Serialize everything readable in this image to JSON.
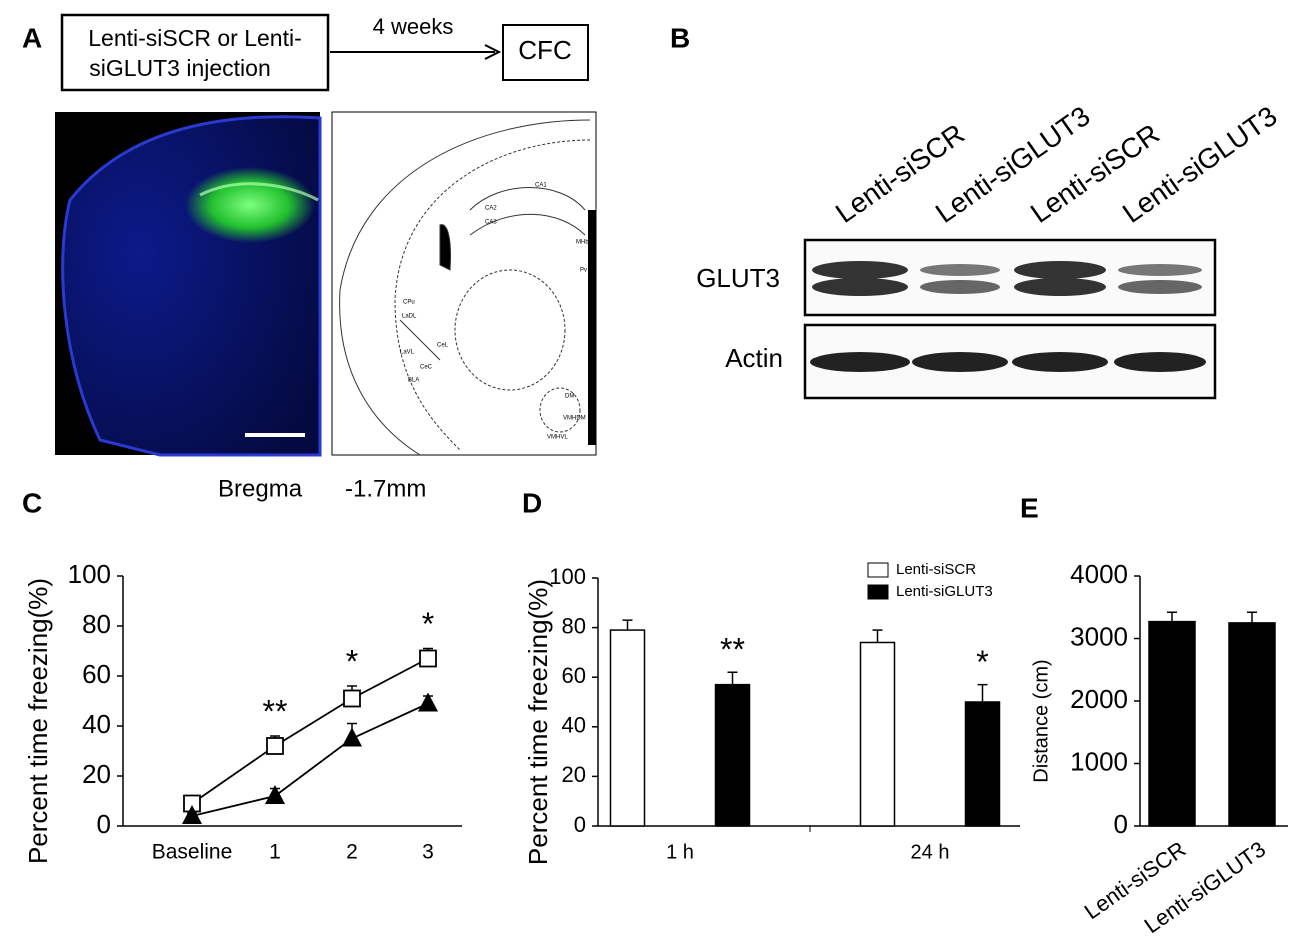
{
  "panel_labels": [
    "A",
    "B",
    "C",
    "D",
    "E"
  ],
  "diagram": {
    "box1_lines": [
      "Lenti-siSCR or Lenti-",
      "siGLUT3 injection"
    ],
    "arrow_label": "4 weeks",
    "box2": "CFC"
  },
  "atlas": {
    "labels": [
      "CA1",
      "CA2",
      "CA3",
      "MHb",
      "Pv",
      "CPu",
      "LaDL",
      "LaVL",
      "CeL",
      "CeC",
      "BLA",
      "DM",
      "VMHDM",
      "VMHVL"
    ],
    "caption": [
      "Bregma",
      "-1.7mm"
    ]
  },
  "blot": {
    "lanes": [
      "Lenti-siSCR",
      "Lenti-siGLUT3",
      "Lenti-siSCR",
      "Lenti-siGLUT3"
    ],
    "rows": [
      "GLUT3",
      "Actin"
    ]
  },
  "chart_data": [
    {
      "type": "line",
      "ylabel": "Percent time freezing(%)",
      "categories": [
        "Baseline",
        "1",
        "2",
        "3"
      ],
      "series": [
        {
          "marker": "square-open",
          "color": "#000000",
          "values": [
            9,
            32,
            51,
            67
          ],
          "errors": [
            1,
            4,
            5,
            4
          ]
        },
        {
          "marker": "triangle",
          "color": "#000000",
          "values": [
            4,
            12,
            35,
            49
          ],
          "errors": [
            1,
            3,
            6,
            3
          ]
        }
      ],
      "annotations": [
        null,
        "**",
        "*",
        "*"
      ],
      "ylim": [
        0,
        100
      ],
      "yticks": [
        0,
        20,
        40,
        60,
        80,
        100
      ]
    },
    {
      "type": "bar",
      "ylabel": "Percent time freezing(%)",
      "categories": [
        "1 h",
        "24 h"
      ],
      "legend": "upper right",
      "series": [
        {
          "name": "Lenti-siSCR",
          "color": "#ffffff",
          "values": [
            79,
            74
          ],
          "errors": [
            4,
            5
          ]
        },
        {
          "name": "Lenti-siGLUT3",
          "color": "#000000",
          "values": [
            57,
            50
          ],
          "errors": [
            5,
            7
          ],
          "annotations": [
            "**",
            "*"
          ]
        }
      ],
      "ylim": [
        0,
        100
      ],
      "yticks": [
        0,
        20,
        40,
        60,
        80,
        100
      ]
    },
    {
      "type": "bar",
      "ylabel": "Distance (cm)",
      "categories": [
        "Lenti-siSCR",
        "Lenti-siGLUT3"
      ],
      "series": [
        {
          "color": "#000000",
          "values": [
            3270,
            3250
          ],
          "errors": [
            150,
            170
          ]
        }
      ],
      "ylim": [
        0,
        4000
      ],
      "yticks": [
        0,
        1000,
        2000,
        3000,
        4000
      ]
    }
  ]
}
